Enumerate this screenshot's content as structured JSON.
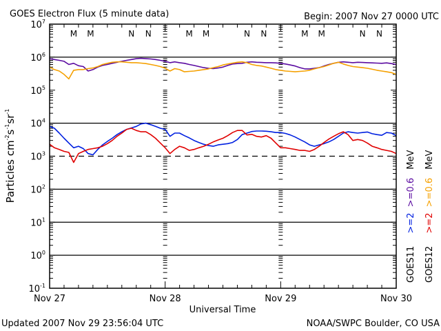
{
  "chart_data": {
    "type": "line",
    "title": "GOES Electron Flux (5 minute data)",
    "subtitle": "Begin: 2007 Nov 27 0000 UTC",
    "xlabel": "Universal Time",
    "ylabel": "Particles cm-2 s-1 sr-1",
    "ylabel_parts": [
      "Particles cm",
      "-2",
      "s",
      "-1",
      "sr",
      "-1"
    ],
    "yscale": "log",
    "ylim": [
      0.1,
      10000000
    ],
    "xlim_hours": [
      0,
      72
    ],
    "y_ticks": [
      {
        "base": "10",
        "exp": "7",
        "value": 10000000
      },
      {
        "base": "10",
        "exp": "6",
        "value": 1000000
      },
      {
        "base": "10",
        "exp": "5",
        "value": 100000
      },
      {
        "base": "10",
        "exp": "4",
        "value": 10000
      },
      {
        "base": "10",
        "exp": "3",
        "value": 1000
      },
      {
        "base": "10",
        "exp": "2",
        "value": 100
      },
      {
        "base": "10",
        "exp": "1",
        "value": 10
      },
      {
        "base": "10",
        "exp": "0",
        "value": 1
      },
      {
        "base": "10",
        "exp": "-1",
        "value": 0.1
      }
    ],
    "x_ticks": [
      {
        "label": "Nov 27",
        "hour": 0
      },
      {
        "label": "Nov 28",
        "hour": 24
      },
      {
        "label": "Nov 29",
        "hour": 48
      },
      {
        "label": "Nov 30",
        "hour": 72
      }
    ],
    "threshold_line": {
      "value": 1000,
      "style": "dashed"
    },
    "reference_lines": [
      1000000,
      10000,
      100,
      10,
      1
    ],
    "markers": [
      {
        "label": "M",
        "hour": 5.0,
        "color": "#e00000"
      },
      {
        "label": "M",
        "hour": 8.5,
        "color": "#0000e0"
      },
      {
        "label": "N",
        "hour": 17.0,
        "color": "#e00000"
      },
      {
        "label": "N",
        "hour": 20.5,
        "color": "#0000e0"
      },
      {
        "label": "M",
        "hour": 29.0,
        "color": "#e00000"
      },
      {
        "label": "M",
        "hour": 32.5,
        "color": "#0000e0"
      },
      {
        "label": "N",
        "hour": 41.0,
        "color": "#e00000"
      },
      {
        "label": "N",
        "hour": 44.5,
        "color": "#0000e0"
      },
      {
        "label": "M",
        "hour": 53.0,
        "color": "#e00000"
      },
      {
        "label": "M",
        "hour": 56.5,
        "color": "#0000e0"
      },
      {
        "label": "N",
        "hour": 65.0,
        "color": "#e00000"
      },
      {
        "label": "N",
        "hour": 68.5,
        "color": "#0000e0"
      }
    ],
    "series": [
      {
        "name": "GOES11 >=0.6 MeV",
        "color": "#5a0aa0",
        "hours": [
          0,
          1,
          2,
          3,
          4,
          5,
          6,
          7,
          8,
          9,
          10,
          11,
          12,
          13,
          14,
          15,
          16,
          17,
          18,
          19,
          20,
          21,
          22,
          23,
          24,
          25,
          26,
          27,
          28,
          29,
          30,
          31,
          32,
          33,
          34,
          35,
          36,
          37,
          38,
          39,
          40,
          41,
          42,
          43,
          44,
          45,
          46,
          47,
          48,
          49,
          50,
          51,
          52,
          53,
          54,
          55,
          56,
          57,
          58,
          59,
          60,
          61,
          62,
          63,
          64,
          65,
          66,
          67,
          68,
          69,
          70,
          71,
          72
        ],
        "values": [
          900000,
          850000,
          800000,
          750000,
          600000,
          650000,
          550000,
          520000,
          380000,
          420000,
          500000,
          560000,
          600000,
          650000,
          700000,
          750000,
          800000,
          850000,
          900000,
          920000,
          900000,
          880000,
          850000,
          800000,
          750000,
          680000,
          720000,
          680000,
          650000,
          600000,
          560000,
          520000,
          480000,
          460000,
          450000,
          470000,
          500000,
          560000,
          620000,
          640000,
          650000,
          700000,
          720000,
          700000,
          690000,
          680000,
          680000,
          670000,
          650000,
          620000,
          580000,
          540000,
          480000,
          440000,
          440000,
          460000,
          480000,
          540000,
          600000,
          650000,
          700000,
          720000,
          700000,
          680000,
          700000,
          690000,
          680000,
          670000,
          660000,
          650000,
          670000,
          640000,
          600000
        ]
      },
      {
        "name": "GOES12 >=0.6 MeV",
        "color": "#f5a000",
        "hours": [
          0,
          1,
          2,
          3,
          4,
          5,
          6,
          7,
          8,
          9,
          10,
          11,
          12,
          13,
          14,
          15,
          16,
          17,
          18,
          19,
          20,
          21,
          22,
          23,
          24,
          25,
          26,
          27,
          28,
          29,
          30,
          31,
          32,
          33,
          34,
          35,
          36,
          37,
          38,
          39,
          40,
          41,
          42,
          43,
          44,
          45,
          46,
          47,
          48,
          49,
          50,
          51,
          52,
          53,
          54,
          55,
          56,
          57,
          58,
          59,
          60,
          61,
          62,
          63,
          64,
          65,
          66,
          67,
          68,
          69,
          70,
          71,
          72
        ],
        "values": [
          500000,
          420000,
          380000,
          300000,
          220000,
          400000,
          420000,
          420000,
          450000,
          470000,
          520000,
          600000,
          650000,
          700000,
          720000,
          720000,
          700000,
          680000,
          680000,
          660000,
          640000,
          600000,
          560000,
          520000,
          460000,
          380000,
          450000,
          420000,
          360000,
          370000,
          380000,
          400000,
          420000,
          440000,
          480000,
          520000,
          580000,
          620000,
          660000,
          700000,
          720000,
          680000,
          600000,
          560000,
          540000,
          500000,
          460000,
          420000,
          400000,
          380000,
          370000,
          360000,
          370000,
          380000,
          400000,
          440000,
          480000,
          520000,
          580000,
          650000,
          700000,
          620000,
          560000,
          520000,
          500000,
          480000,
          460000,
          430000,
          400000,
          380000,
          360000,
          340000,
          300000
        ]
      },
      {
        "name": "GOES11 >=2 MeV",
        "color": "#0020e0",
        "hours": [
          0,
          1,
          2,
          3,
          4,
          5,
          6,
          7,
          8,
          9,
          10,
          11,
          12,
          13,
          14,
          15,
          16,
          17,
          18,
          19,
          20,
          21,
          22,
          23,
          24,
          25,
          26,
          27,
          28,
          29,
          30,
          31,
          32,
          33,
          34,
          35,
          36,
          37,
          38,
          39,
          40,
          41,
          42,
          43,
          44,
          45,
          46,
          47,
          48,
          49,
          50,
          51,
          52,
          53,
          54,
          55,
          56,
          57,
          58,
          59,
          60,
          61,
          62,
          63,
          64,
          65,
          66,
          67,
          68,
          69,
          70,
          71,
          72
        ],
        "values": [
          8000,
          7000,
          5000,
          3500,
          2500,
          1800,
          2000,
          1700,
          1200,
          1100,
          1600,
          2200,
          2800,
          3500,
          4500,
          5500,
          6500,
          7200,
          8000,
          9500,
          10000,
          9000,
          8000,
          7000,
          6500,
          4000,
          5000,
          5000,
          4200,
          3600,
          3000,
          2600,
          2300,
          2100,
          2000,
          2200,
          2300,
          2400,
          2600,
          3200,
          4500,
          5000,
          5600,
          5800,
          5800,
          5700,
          5500,
          5200,
          5200,
          4900,
          4400,
          3800,
          3200,
          2700,
          2200,
          2000,
          2200,
          2400,
          2700,
          3200,
          4000,
          5000,
          5500,
          5200,
          5000,
          5200,
          5400,
          4800,
          4500,
          4300,
          5200,
          5000,
          4200
        ]
      },
      {
        "name": "GOES12 >=2 MeV",
        "color": "#e00000",
        "hours": [
          0,
          1,
          2,
          3,
          4,
          5,
          6,
          7,
          8,
          9,
          10,
          11,
          12,
          13,
          14,
          15,
          16,
          17,
          18,
          19,
          20,
          21,
          22,
          23,
          24,
          25,
          26,
          27,
          28,
          29,
          30,
          31,
          32,
          33,
          34,
          35,
          36,
          37,
          38,
          39,
          40,
          41,
          42,
          43,
          44,
          45,
          46,
          47,
          48,
          49,
          50,
          51,
          52,
          53,
          54,
          55,
          56,
          57,
          58,
          59,
          60,
          61,
          62,
          63,
          64,
          65,
          66,
          67,
          68,
          69,
          70,
          71,
          72
        ],
        "values": [
          2300,
          1800,
          1600,
          1400,
          1300,
          650,
          1200,
          1400,
          1600,
          1700,
          1800,
          2000,
          2400,
          3000,
          4000,
          5000,
          6500,
          7000,
          6000,
          5500,
          5500,
          4500,
          3500,
          2500,
          1800,
          1200,
          1600,
          2000,
          1800,
          1500,
          1600,
          1800,
          2000,
          2300,
          2700,
          3100,
          3500,
          4200,
          5200,
          6000,
          6000,
          4400,
          4600,
          4000,
          3800,
          4200,
          3500,
          2500,
          1800,
          1800,
          1700,
          1600,
          1500,
          1500,
          1400,
          1600,
          2000,
          2600,
          3300,
          4000,
          4800,
          5500,
          4500,
          3000,
          3200,
          3000,
          2500,
          2000,
          1800,
          1600,
          1500,
          1400,
          1200
        ]
      }
    ],
    "legend": {
      "placement": "right",
      "columns": [
        {
          "satellite": "GOES11",
          "entries": [
            {
              "text": ">=2",
              "color": "#0020e0"
            },
            {
              "text": ">=0.6",
              "color": "#5a0aa0"
            }
          ],
          "unit": "MeV"
        },
        {
          "satellite": "GOES12",
          "entries": [
            {
              "text": ">=2",
              "color": "#e00000"
            },
            {
              "text": ">=0.6",
              "color": "#f5a000"
            }
          ],
          "unit": "MeV"
        }
      ]
    }
  },
  "footer": {
    "updated": "Updated 2007 Nov 29 23:56:04 UTC",
    "source": "NOAA/SWPC Boulder, CO USA"
  }
}
